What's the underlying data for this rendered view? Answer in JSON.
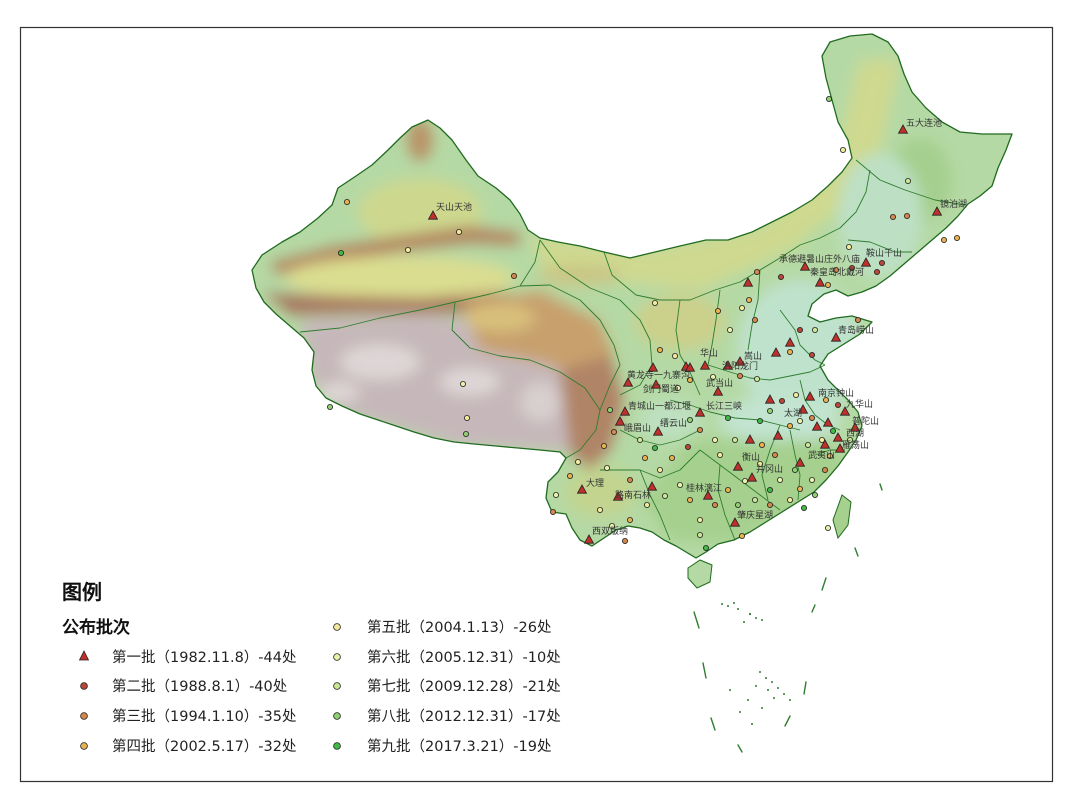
{
  "legend": {
    "title": "图例",
    "subtitle": "公布批次",
    "items": [
      {
        "label": "第一批（1982.11.8）-44处",
        "marker": "triangle",
        "color": "#c0302a"
      },
      {
        "label": "第二批（1988.8.1）-40处",
        "marker": "circle",
        "color": "#b8473a"
      },
      {
        "label": "第三批（1994.1.10）-35处",
        "marker": "circle",
        "color": "#d4874a"
      },
      {
        "label": "第四批（2002.5.17）-32处",
        "marker": "circle",
        "color": "#e9b24e"
      },
      {
        "label": "第五批（2004.1.13）-26处",
        "marker": "circle",
        "color": "#f2ea9a"
      },
      {
        "label": "第六批（2005.12.31）-10处",
        "marker": "circle",
        "color": "#e8f2a8"
      },
      {
        "label": "第七批（2009.12.28）-21处",
        "marker": "circle",
        "color": "#c9e894"
      },
      {
        "label": "第八批（2012.12.31）-17处",
        "marker": "circle",
        "color": "#8fd070"
      },
      {
        "label": "第九批（2017.3.21）-19处",
        "marker": "circle",
        "color": "#3fba45"
      }
    ]
  },
  "map": {
    "boundary_color": "#2f7d2f",
    "labels": [
      "五大连池",
      "镜泊湖",
      "天山天池",
      "承德避暑山庄外八庙",
      "鞍山千山",
      "秦皇岛北戴河",
      "青岛崂山",
      "嵩山",
      "华山",
      "洛阳龙门",
      "黄龙寺一九寨沟",
      "剑门蜀道",
      "武当山",
      "青城山一都江堰",
      "长江三峡",
      "南京钟山",
      "九华山",
      "太湖",
      "峨眉山",
      "缙云山",
      "普陀山",
      "西湖",
      "雁荡山",
      "衡山",
      "武夷山",
      "井冈山",
      "桂林漓江",
      "大理",
      "路南石林",
      "肇庆星湖",
      "西双版纳"
    ]
  }
}
